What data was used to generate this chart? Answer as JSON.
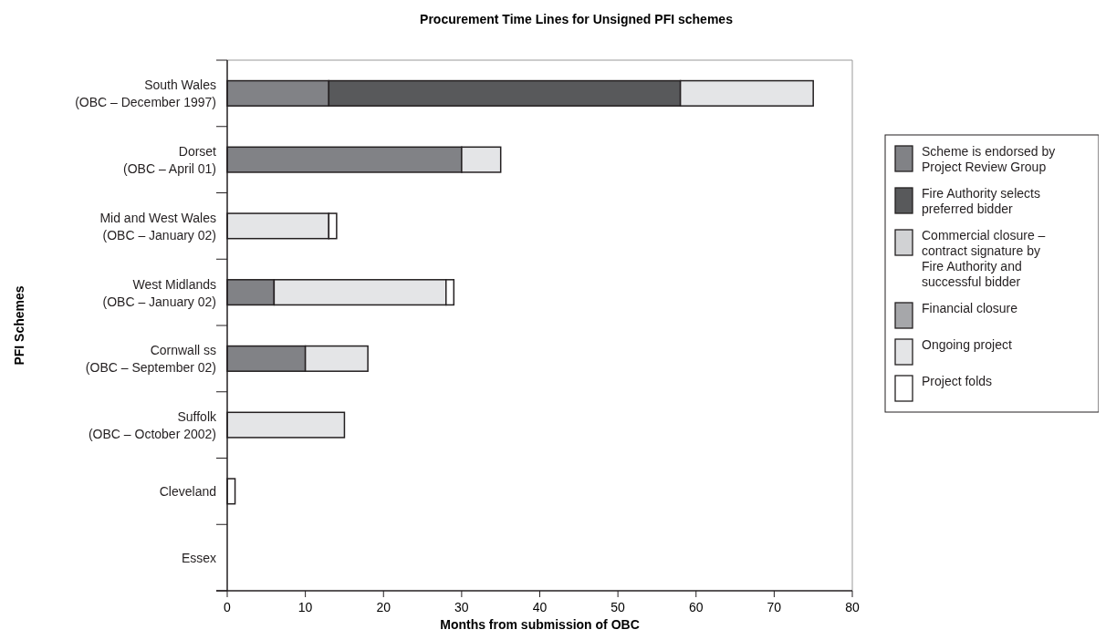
{
  "chart_data": {
    "type": "bar",
    "orientation": "horizontal",
    "stacked": true,
    "title": "Procurement Time Lines for Unsigned PFI schemes",
    "xlabel": "Months from submission of OBC",
    "ylabel": "PFI Schemes",
    "categories": [
      "South Wales\n(OBC – December 1997)",
      "Dorset\n(OBC – April 01)",
      "Mid and West Wales\n(OBC – January 02)",
      "West Midlands\n(OBC – January 02)",
      "Cornwall ss\n(OBC – September 02)",
      "Suffolk\n(OBC – October 2002)",
      "Cleveland",
      "Essex"
    ],
    "series": [
      {
        "name": "Scheme is endorsed by Project Review Group",
        "color": "#818286",
        "values": [
          13,
          30,
          null,
          6,
          10,
          null,
          null,
          null
        ]
      },
      {
        "name": "Fire Authority selects preferred bidder",
        "color": "#58595b",
        "values": [
          45,
          null,
          null,
          null,
          null,
          null,
          null,
          null
        ]
      },
      {
        "name": "Commercial closure – contract signature by Fire Authority and successful bidder",
        "color": "#d1d2d4",
        "values": [
          null,
          null,
          null,
          null,
          null,
          null,
          null,
          null
        ]
      },
      {
        "name": "Financial closure",
        "color": "#a6a7aa",
        "values": [
          null,
          null,
          null,
          null,
          null,
          null,
          null,
          null
        ]
      },
      {
        "name": "Ongoing project",
        "color": "#e4e5e7",
        "values": [
          17,
          5,
          13,
          22,
          8,
          15,
          null,
          null
        ]
      },
      {
        "name": "Project folds",
        "color": "#ffffff",
        "values": [
          null,
          null,
          1,
          1,
          null,
          null,
          1,
          null
        ]
      }
    ],
    "xlim": [
      0,
      80
    ],
    "xticks": [
      0,
      10,
      20,
      30,
      40,
      50,
      60,
      70,
      80
    ],
    "grid": false,
    "legend": "right"
  }
}
